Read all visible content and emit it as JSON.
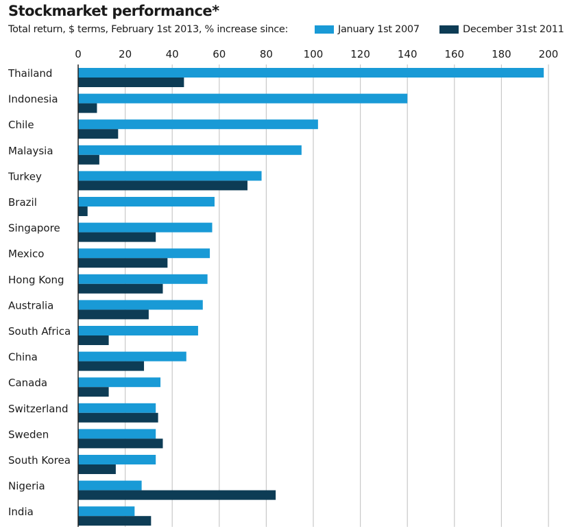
{
  "colors": {
    "series0": "#199ad6",
    "series1": "#0d3c55",
    "grid": "#c8c8c8",
    "axis": "#222222"
  },
  "chart_data": {
    "type": "bar",
    "orientation": "horizontal",
    "title": "Stockmarket performance*",
    "subtitle": "Total return, $ terms, February 1st 2013, % increase since:",
    "xlabel": "",
    "ylabel": "",
    "xlim": [
      0,
      200
    ],
    "xticks": [
      0,
      20,
      40,
      60,
      80,
      100,
      120,
      140,
      160,
      180,
      200
    ],
    "grid": true,
    "legend_position": "top-right",
    "categories": [
      "Thailand",
      "Indonesia",
      "Chile",
      "Malaysia",
      "Turkey",
      "Brazil",
      "Singapore",
      "Mexico",
      "Hong Kong",
      "Australia",
      "South Africa",
      "China",
      "Canada",
      "Switzerland",
      "Sweden",
      "South Korea",
      "Nigeria",
      "India"
    ],
    "series": [
      {
        "name": "January 1st 2007",
        "values": [
          198,
          140,
          102,
          95,
          78,
          58,
          57,
          56,
          55,
          53,
          51,
          46,
          35,
          33,
          33,
          33,
          27,
          24
        ]
      },
      {
        "name": "December 31st 2011",
        "values": [
          45,
          8,
          17,
          9,
          72,
          4,
          33,
          38,
          36,
          30,
          13,
          28,
          13,
          34,
          36,
          16,
          84,
          31
        ]
      }
    ]
  }
}
